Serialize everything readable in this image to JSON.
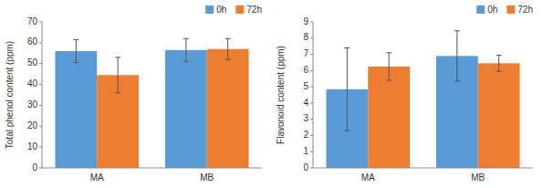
{
  "chart_data": [
    {
      "type": "bar",
      "y_label": "Total phenol content (ppm)",
      "categories": [
        "MA",
        "MB"
      ],
      "series": [
        {
          "name": "0h",
          "color": "#5B9BD5",
          "values": [
            56.0,
            56.5
          ],
          "errors": [
            5.5,
            5.5
          ]
        },
        {
          "name": "72h",
          "color": "#ED7D31",
          "values": [
            44.5,
            57.0
          ],
          "errors": [
            8.5,
            5.0
          ]
        }
      ],
      "ylim": [
        0,
        70
      ],
      "yticks": [
        0,
        10,
        20,
        30,
        40,
        50,
        60,
        70
      ],
      "grid": false,
      "legend": "upper right"
    },
    {
      "type": "bar",
      "y_label": "Flavonoid content (ppm)",
      "categories": [
        "MA",
        "MB"
      ],
      "series": [
        {
          "name": "0h",
          "color": "#5B9BD5",
          "values": [
            4.85,
            6.9
          ],
          "errors": [
            2.55,
            1.55
          ]
        },
        {
          "name": "72h",
          "color": "#ED7D31",
          "values": [
            6.25,
            6.45
          ],
          "errors": [
            0.85,
            0.5
          ]
        }
      ],
      "ylim": [
        0,
        9
      ],
      "yticks": [
        0,
        1,
        2,
        3,
        4,
        5,
        6,
        7,
        8,
        9
      ],
      "grid": false,
      "legend": "upper right"
    }
  ]
}
